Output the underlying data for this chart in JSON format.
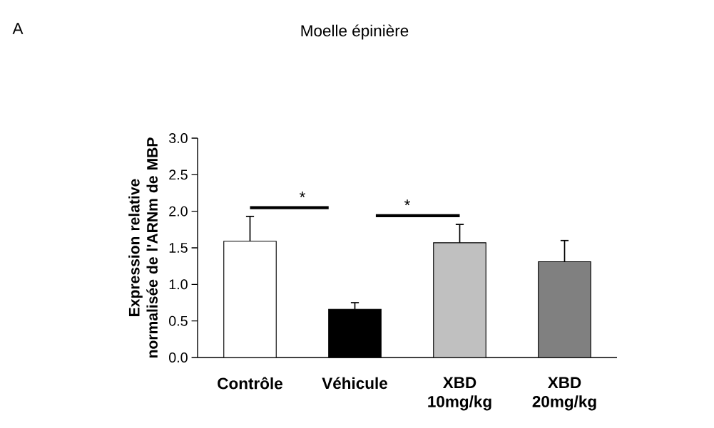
{
  "chart_data": {
    "type": "bar",
    "title": "Moelle épinière",
    "ylabel": "Expression relative normalisée de l'ARNm de MBP",
    "categories": [
      "Contrôle",
      "Véhicule",
      "XBD 10mg/kg",
      "XBD 20mg/kg"
    ],
    "values": [
      1.59,
      0.66,
      1.57,
      1.31
    ],
    "colors": [
      "#ffffff",
      "#000000",
      "#c0c0c0",
      "#808080"
    ],
    "errors": [
      [
        1.59,
        1.93
      ],
      [
        0.66,
        0.75
      ],
      [
        1.57,
        1.82
      ],
      [
        1.31,
        1.6
      ]
    ],
    "ylim": [
      0,
      3.0
    ],
    "yticks": [
      {
        "value": 0,
        "label": "0.0"
      },
      {
        "value": 0.5,
        "label": "0.5"
      },
      {
        "value": 1,
        "label": "1.0"
      },
      {
        "value": 1.5,
        "label": "1.5"
      },
      {
        "value": 2,
        "label": "2.0"
      },
      {
        "value": 2.5,
        "label": "2.5"
      },
      {
        "value": 3,
        "label": "3.0"
      }
    ],
    "annotations": [
      "A",
      "*",
      "*"
    ],
    "grid": false
  }
}
